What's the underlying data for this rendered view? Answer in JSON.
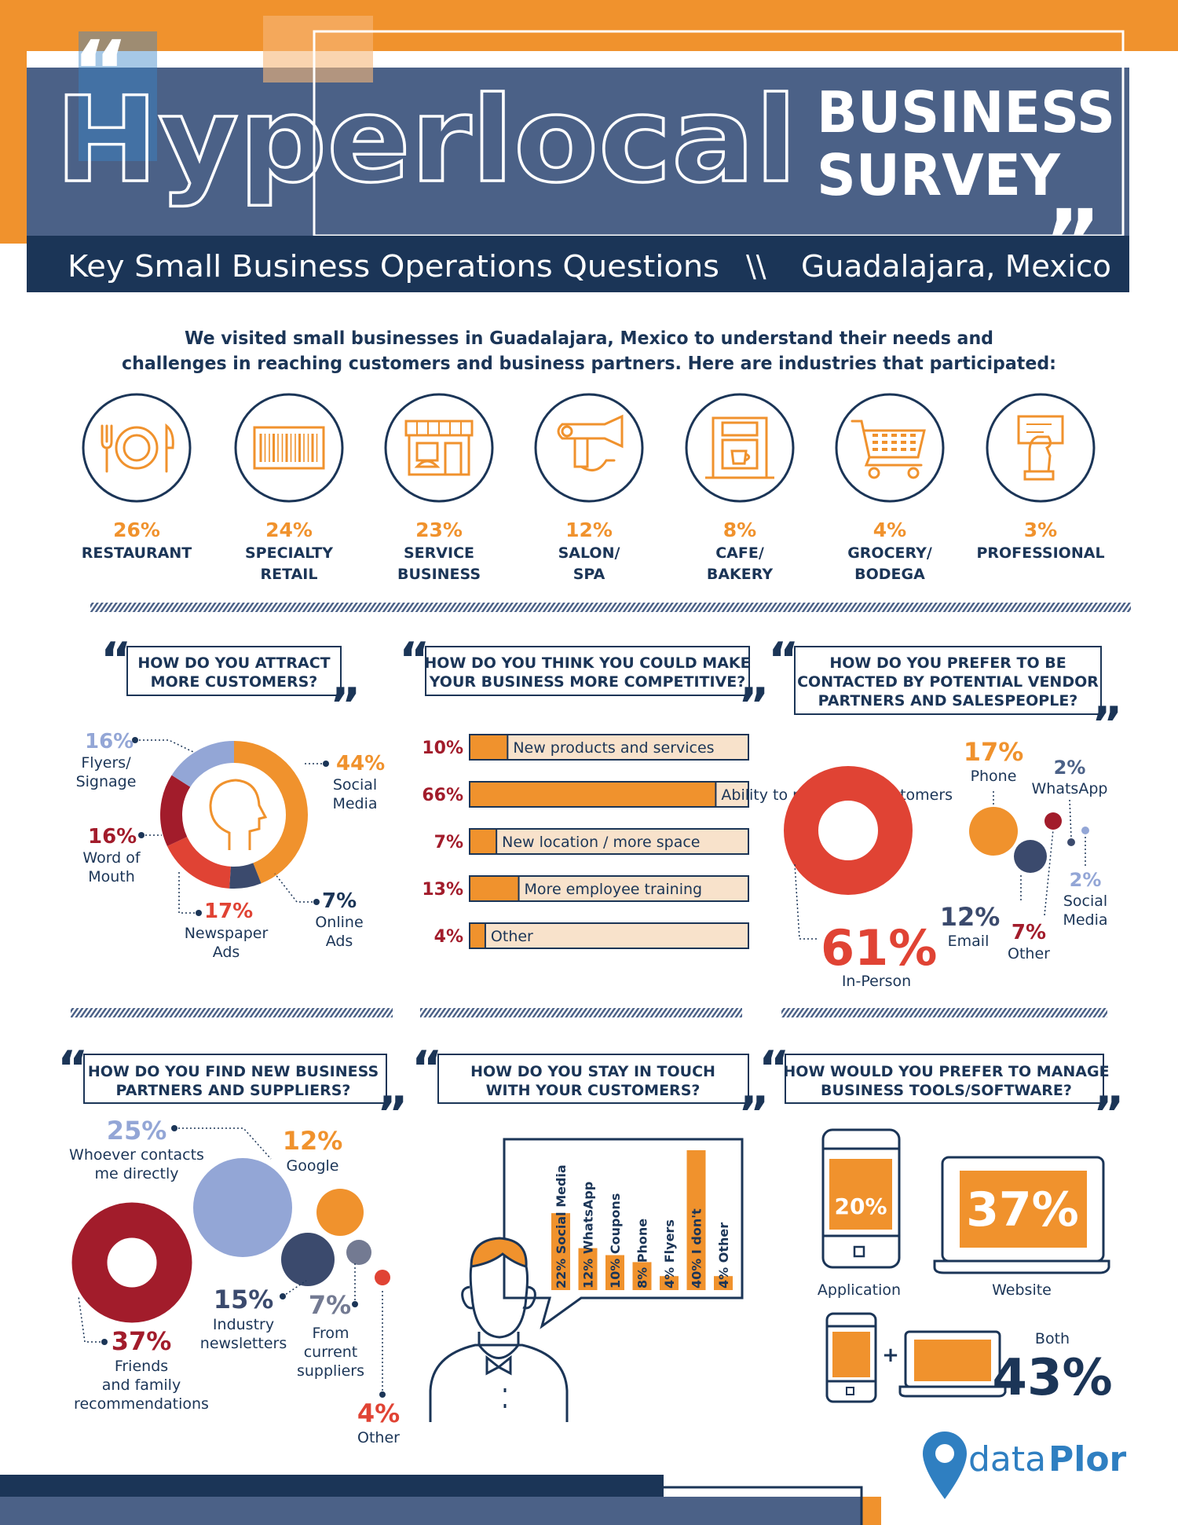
{
  "colors": {
    "navy": "#1b3557",
    "slate": "#4b6187",
    "orange": "#f0922d",
    "red": "#e04334",
    "crimson": "#a21c2b",
    "lilac": "#93a6d6",
    "peach": "#f8e2cb",
    "dark": "#3b4a6d",
    "gray": "#737a92"
  },
  "header": {
    "title_word": "Hyperlocal",
    "title_line1": "BUSINESS",
    "title_line2": "SURVEY",
    "subtitle_left": "Key Small Business Operations Questions",
    "subtitle_sep": "\\\\",
    "subtitle_right": "Guadalajara, Mexico"
  },
  "intro": {
    "line1": "We visited small businesses in Guadalajara, Mexico to understand their needs and",
    "line2": "challenges in reaching customers and business partners. Here are industries that participated:"
  },
  "industries": [
    {
      "pct": "26%",
      "l1": "RESTAURANT",
      "l2": "",
      "icon": "plate-cutlery-icon"
    },
    {
      "pct": "24%",
      "l1": "SPECIALTY",
      "l2": "RETAIL",
      "icon": "barcode-icon"
    },
    {
      "pct": "23%",
      "l1": "SERVICE",
      "l2": "BUSINESS",
      "icon": "storefront-icon"
    },
    {
      "pct": "12%",
      "l1": "SALON/",
      "l2": "SPA",
      "icon": "hair-dryer-icon"
    },
    {
      "pct": "8%",
      "l1": "CAFE/",
      "l2": "BAKERY",
      "icon": "coffee-machine-icon"
    },
    {
      "pct": "4%",
      "l1": "GROCERY/",
      "l2": "BODEGA",
      "icon": "shopping-cart-icon"
    },
    {
      "pct": "3%",
      "l1": "PROFESSIONAL",
      "l2": "",
      "icon": "business-card-icon"
    }
  ],
  "q1": {
    "l1": "HOW DO YOU ATTRACT",
    "l2": "MORE CUSTOMERS?",
    "labels": [
      {
        "pct": "44%",
        "l1": "Social",
        "l2": "Media"
      },
      {
        "pct": "7%",
        "l1": "Online",
        "l2": "Ads"
      },
      {
        "pct": "17%",
        "l1": "Newspaper",
        "l2": "Ads"
      },
      {
        "pct": "16%",
        "l1": "Word of",
        "l2": "Mouth"
      },
      {
        "pct": "16%",
        "l1": "Flyers/",
        "l2": "Signage"
      }
    ]
  },
  "q2": {
    "l1": "HOW DO YOU THINK YOU COULD MAKE",
    "l2": "YOUR BUSINESS MORE COMPETITIVE?",
    "bars": [
      {
        "pct": "10%",
        "label": "New products and services"
      },
      {
        "pct": "66%",
        "label": "Ability to reach new customers"
      },
      {
        "pct": "7%",
        "label": "New location / more space"
      },
      {
        "pct": "13%",
        "label": "More employee training"
      },
      {
        "pct": "4%",
        "label": "Other"
      }
    ]
  },
  "q3": {
    "l1": "HOW DO YOU PREFER TO BE",
    "l2": "CONTACTED BY POTENTIAL VENDOR",
    "l3": "PARTNERS AND SALESPEOPLE?",
    "labels": {
      "inperson_pct": "61%",
      "inperson": "In-Person",
      "phone_pct": "17%",
      "phone": "Phone",
      "email_pct": "12%",
      "email": "Email",
      "other_pct": "7%",
      "other": "Other",
      "whatsapp_pct": "2%",
      "whatsapp": "WhatsApp",
      "social_pct": "2%",
      "social1": "Social",
      "social2": "Media"
    }
  },
  "q4": {
    "l1": "HOW DO YOU FIND NEW BUSINESS",
    "l2": "PARTNERS AND SUPPLIERS?",
    "labels": {
      "whoever_pct": "25%",
      "whoever1": "Whoever contacts",
      "whoever2": "me directly",
      "google_pct": "12%",
      "google": "Google",
      "ind_pct": "15%",
      "ind1": "Industry",
      "ind2": "newsletters",
      "cur_pct": "7%",
      "cur1": "From",
      "cur2": "current",
      "cur3": "suppliers",
      "friends_pct": "37%",
      "friends1": "Friends",
      "friends2": "and family",
      "friends3": "recommendations",
      "other_pct": "4%",
      "other": "Other"
    }
  },
  "q5": {
    "l1": "HOW DO YOU STAY IN TOUCH",
    "l2": "WITH YOUR CUSTOMERS?",
    "bars": [
      "22% Social Media",
      "12% WhatsApp",
      "10% Coupons",
      "8% Phone",
      "4% Flyers",
      "40% I don't",
      "4% Other"
    ]
  },
  "q6": {
    "l1": "HOW WOULD YOU PREFER TO MANAGE",
    "l2": "BUSINESS TOOLS/SOFTWARE?",
    "app_pct": "20%",
    "app": "Application",
    "web_pct": "37%",
    "web": "Website",
    "both": "Both",
    "both_pct": "43%",
    "plus": "+"
  },
  "logo": {
    "text_a": "data",
    "text_b": "Plor"
  },
  "chart_data": [
    {
      "type": "bar",
      "title": "",
      "categories": [
        "RESTAURANT",
        "SPECIALTY RETAIL",
        "SERVICE BUSINESS",
        "SALON/ SPA",
        "CAFE/ BAKERY",
        "GROCERY/ BODEGA",
        "PROFESSIONAL"
      ],
      "values": [
        26,
        24,
        23,
        12,
        8,
        4,
        3
      ]
    },
    {
      "type": "pie",
      "title": "HOW DO YOU ATTRACT MORE CUSTOMERS?",
      "categories": [
        "Social Media",
        "Online Ads",
        "Newspaper Ads",
        "Word of Mouth",
        "Flyers/ Signage"
      ],
      "values": [
        44,
        7,
        17,
        16,
        16
      ]
    },
    {
      "type": "bar",
      "title": "HOW DO YOU THINK YOU COULD MAKE YOUR BUSINESS MORE COMPETITIVE?",
      "categories": [
        "New products and services",
        "Ability to reach new customers",
        "New location / more space",
        "More employee training",
        "Other"
      ],
      "values": [
        10,
        66,
        7,
        13,
        4
      ],
      "xlim": [
        0,
        75
      ]
    },
    {
      "type": "pie",
      "title": "HOW DO YOU PREFER TO BE CONTACTED BY POTENTIAL VENDOR PARTNERS AND SALESPEOPLE?",
      "categories": [
        "In-Person",
        "Phone",
        "Email",
        "Other",
        "WhatsApp",
        "Social Media"
      ],
      "values": [
        61,
        17,
        12,
        7,
        2,
        2
      ]
    },
    {
      "type": "pie",
      "title": "HOW DO YOU FIND NEW BUSINESS PARTNERS AND SUPPLIERS?",
      "categories": [
        "Friends and family recommendations",
        "Whoever contacts me directly",
        "Industry newsletters",
        "Google",
        "From current suppliers",
        "Other"
      ],
      "values": [
        37,
        25,
        15,
        12,
        7,
        4
      ]
    },
    {
      "type": "bar",
      "title": "HOW DO YOU STAY IN TOUCH WITH YOUR CUSTOMERS?",
      "categories": [
        "Social Media",
        "WhatsApp",
        "Coupons",
        "Phone",
        "Flyers",
        "I don't",
        "Other"
      ],
      "values": [
        22,
        12,
        10,
        8,
        4,
        40,
        4
      ]
    },
    {
      "type": "pie",
      "title": "HOW WOULD YOU PREFER TO MANAGE BUSINESS TOOLS/SOFTWARE?",
      "categories": [
        "Application",
        "Website",
        "Both"
      ],
      "values": [
        20,
        37,
        43
      ]
    }
  ]
}
